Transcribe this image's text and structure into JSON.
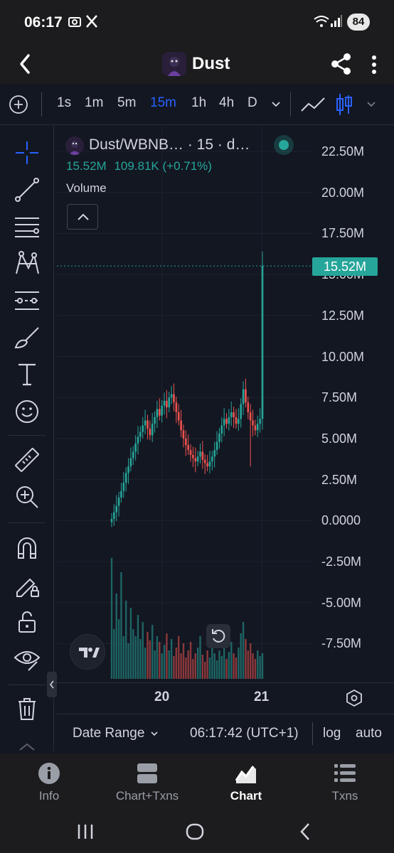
{
  "status_bar": {
    "time": "06:17",
    "battery": "84"
  },
  "header": {
    "title": "Dust"
  },
  "timeframes": {
    "items": [
      "1s",
      "1m",
      "5m",
      "15m",
      "1h",
      "4h",
      "D"
    ],
    "active": "15m"
  },
  "legend": {
    "title": "Dust/WBNB… · 15 · d…",
    "last": "15.52M",
    "change": "109.81K (+0.71%)",
    "volume_label": "Volume"
  },
  "price_axis": {
    "ticks": [
      "22.50M",
      "20.00M",
      "17.50M",
      "15.00M",
      "12.50M",
      "10.00M",
      "7.50M",
      "5.00M",
      "2.50M",
      "0.0000",
      "-2.50M",
      "-5.00M",
      "-7.50M"
    ],
    "last_price_label": "15.52M"
  },
  "time_axis": {
    "ticks": [
      "20",
      "21"
    ]
  },
  "info_bar": {
    "date_range": "Date Range",
    "clock": "06:17:42 (UTC+1)",
    "log": "log",
    "auto": "auto"
  },
  "bottom_nav": [
    {
      "label": "Info",
      "icon": "info-icon"
    },
    {
      "label": "Chart+Txns",
      "icon": "split-view-icon"
    },
    {
      "label": "Chart",
      "icon": "chart-icon",
      "active": true
    },
    {
      "label": "Txns",
      "icon": "list-icon"
    }
  ],
  "colors": {
    "background": "#131722",
    "up": "#26a69a",
    "down": "#ef5350",
    "accent": "#2962ff"
  },
  "chart_data": {
    "type": "candlestick",
    "y_range": [
      -9000000,
      24000000
    ],
    "last_price": 15520000,
    "x_ticks": [
      "20",
      "21"
    ],
    "approx_close_series": [
      0.1,
      0.5,
      0.9,
      1.4,
      1.8,
      2.3,
      2.9,
      3.3,
      3.8,
      4.2,
      4.7,
      5.1,
      5.4,
      5.8,
      6.1,
      5.6,
      5.2,
      5.9,
      6.3,
      6.8,
      6.4,
      7.0,
      7.3,
      6.9,
      7.5,
      7.7,
      7.2,
      6.6,
      6.1,
      5.5,
      5.0,
      4.6,
      4.3,
      4.0,
      3.8,
      3.6,
      3.9,
      4.2,
      3.7,
      3.5,
      3.3,
      3.6,
      3.9,
      4.3,
      4.8,
      5.3,
      5.8,
      6.2,
      5.9,
      6.3,
      6.6,
      6.3,
      5.9,
      6.2,
      7.1,
      8.0,
      7.2,
      6.6,
      6.1,
      5.8,
      5.5,
      5.9,
      6.2,
      15.52
    ],
    "volume_series": [
      0.85,
      0.35,
      0.6,
      0.42,
      0.75,
      0.3,
      0.55,
      0.25,
      0.5,
      0.35,
      0.3,
      0.45,
      0.28,
      0.4,
      0.22,
      0.33,
      0.27,
      0.38,
      0.2,
      0.3,
      0.26,
      0.18,
      0.24,
      0.32,
      0.2,
      0.28,
      0.16,
      0.22,
      0.3,
      0.18,
      0.25,
      0.15,
      0.2,
      0.26,
      0.14,
      0.18,
      0.22,
      0.3,
      0.17,
      0.12,
      0.2,
      0.15,
      0.24,
      0.18,
      0.13,
      0.2,
      0.16,
      0.22,
      0.14,
      0.19,
      0.26,
      0.18,
      0.15,
      0.22,
      0.32,
      0.4,
      0.28,
      0.2,
      0.25,
      0.18,
      0.14,
      0.2,
      0.16,
      0.18
    ]
  }
}
